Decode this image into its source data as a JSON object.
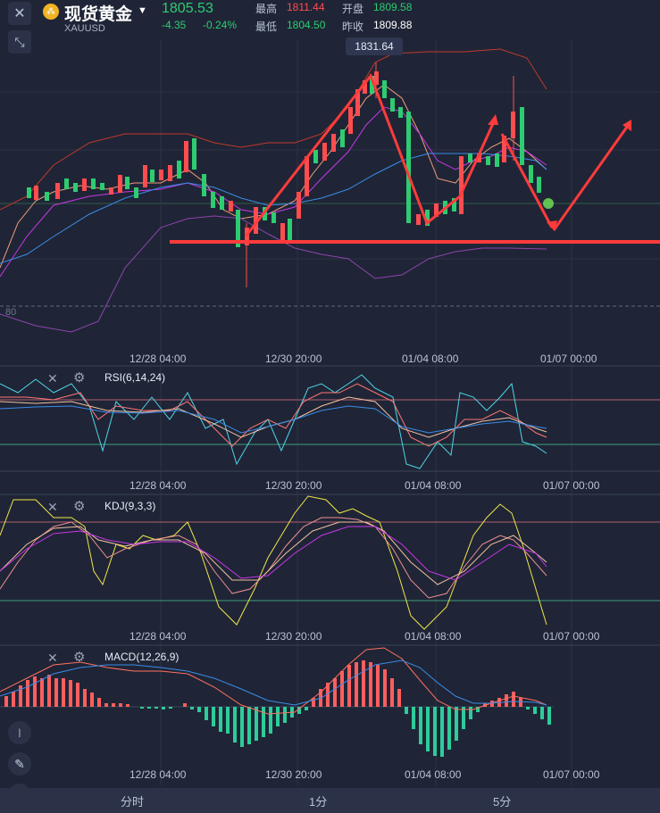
{
  "header": {
    "close_icon": "close-icon",
    "logo_icon": "gold-coin-icon",
    "symbol_name": "现货黄金",
    "dropdown_icon": "caret-down-icon",
    "symbol_code": "XAUUSD",
    "last_price": "1805.53",
    "change": "-4.35",
    "change_percent": "-0.24%",
    "high_label": "最高",
    "high_value": "1811.44",
    "open_label": "开盘",
    "open_value": "1809.58",
    "low_label": "最低",
    "low_value": "1804.50",
    "prev_close_label": "昨收",
    "prev_close_value": "1809.88"
  },
  "chart": {
    "max_price_label": "1831.64",
    "left_price_label": "80",
    "x_ticks": [
      "12/28 04:00",
      "12/30 20:00",
      "01/04 08:00",
      "01/07 00:00"
    ],
    "panels": [
      {
        "id": "rsi",
        "label": "RSI(6,14,24)"
      },
      {
        "id": "kdj",
        "label": "KDJ(9,3,3)"
      },
      {
        "id": "macd",
        "label": "MACD(12,26,9)"
      }
    ],
    "colors": {
      "up": "#ff4d4f",
      "down": "#2ecc71",
      "bg": "#1f2536",
      "annotation": "#ff3b3b",
      "boll_upper": "#c0392b",
      "ma_orange": "#f39c7a",
      "ma_purple": "#c837e8",
      "ma_blue": "#3b8be8",
      "boll_lower": "#8e44ad"
    }
  },
  "tools": {
    "collapse_icon": "collapse-arrows-icon",
    "candle_icon": "candlestick-icon",
    "draw_icon": "pencil-icon",
    "indicator_icon": "trend-line-icon"
  },
  "bottom_tabs": [
    "分时",
    "1分",
    "5分"
  ],
  "panel_tools": {
    "close_icon": "close-icon",
    "settings_icon": "gear-icon"
  }
}
